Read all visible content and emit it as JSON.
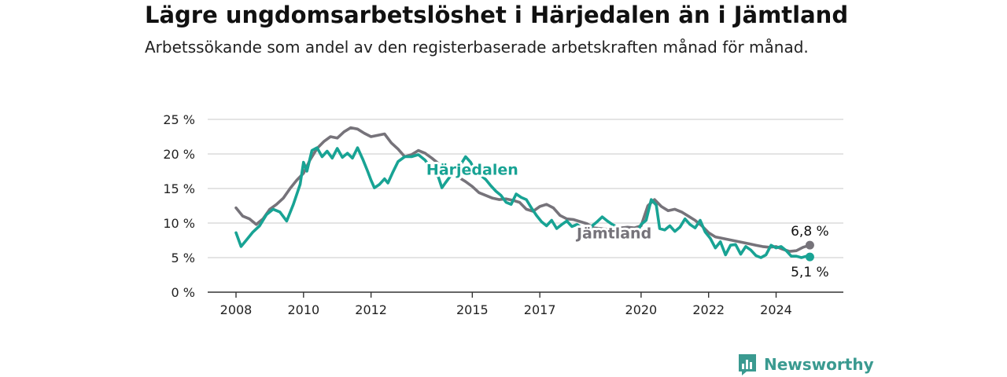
{
  "title": "Lägre ungdomsarbetslöshet i Härjedalen än i Jämtland",
  "subtitle": "Arbetssökande som andel av den registerbaserade arbetskraften månad för månad.",
  "brand": {
    "name": "Newsworthy",
    "logo_icon": "bar-chart-icon",
    "color": "#3a9a90"
  },
  "chart_data": {
    "type": "line",
    "title": "Lägre ungdomsarbetslöshet i Härjedalen än i Jämtland",
    "subtitle": "Arbetssökande som andel av den registerbaserade arbetskraften månad för månad.",
    "xlabel": "",
    "ylabel": "",
    "xlim": [
      2008,
      2025.2
    ],
    "ylim": [
      0,
      25
    ],
    "x_ticks": [
      2008,
      2010,
      2012,
      2015,
      2017,
      2020,
      2022,
      2024
    ],
    "x_tick_labels": [
      "2008",
      "2010",
      "2012",
      "2015",
      "2017",
      "2020",
      "2022",
      "2024"
    ],
    "y_ticks": [
      0,
      5,
      10,
      15,
      20,
      25
    ],
    "y_tick_labels": [
      "0 %",
      "5 %",
      "10 %",
      "15 %",
      "20 %",
      "25 %"
    ],
    "grid": "horizontal",
    "series": [
      {
        "name": "Jämtland",
        "color": "#76737a",
        "end_label": "6,8 %",
        "points": [
          [
            2008.0,
            12.2
          ],
          [
            2008.2,
            11.0
          ],
          [
            2008.4,
            10.6
          ],
          [
            2008.6,
            9.8
          ],
          [
            2008.8,
            10.6
          ],
          [
            2009.0,
            12.0
          ],
          [
            2009.2,
            12.7
          ],
          [
            2009.4,
            13.6
          ],
          [
            2009.6,
            15.0
          ],
          [
            2009.8,
            16.2
          ],
          [
            2010.0,
            17.2
          ],
          [
            2010.2,
            19.2
          ],
          [
            2010.4,
            20.8
          ],
          [
            2010.6,
            21.8
          ],
          [
            2010.8,
            22.5
          ],
          [
            2011.0,
            22.3
          ],
          [
            2011.2,
            23.2
          ],
          [
            2011.4,
            23.8
          ],
          [
            2011.6,
            23.6
          ],
          [
            2011.8,
            23.0
          ],
          [
            2012.0,
            22.5
          ],
          [
            2012.2,
            22.7
          ],
          [
            2012.4,
            22.9
          ],
          [
            2012.6,
            21.6
          ],
          [
            2012.8,
            20.7
          ],
          [
            2013.0,
            19.6
          ],
          [
            2013.2,
            19.9
          ],
          [
            2013.4,
            20.5
          ],
          [
            2013.6,
            20.1
          ],
          [
            2013.8,
            19.4
          ],
          [
            2014.0,
            18.6
          ],
          [
            2014.2,
            18.0
          ],
          [
            2014.4,
            17.4
          ],
          [
            2014.6,
            16.6
          ],
          [
            2014.8,
            16.0
          ],
          [
            2015.0,
            15.3
          ],
          [
            2015.2,
            14.4
          ],
          [
            2015.4,
            14.0
          ],
          [
            2015.6,
            13.6
          ],
          [
            2015.8,
            13.4
          ],
          [
            2016.0,
            13.5
          ],
          [
            2016.2,
            13.3
          ],
          [
            2016.4,
            13.0
          ],
          [
            2016.6,
            12.0
          ],
          [
            2016.8,
            11.7
          ],
          [
            2017.0,
            12.4
          ],
          [
            2017.2,
            12.7
          ],
          [
            2017.4,
            12.2
          ],
          [
            2017.6,
            11.1
          ],
          [
            2017.8,
            10.6
          ],
          [
            2018.0,
            10.5
          ],
          [
            2018.2,
            10.2
          ],
          [
            2018.4,
            9.9
          ],
          [
            2018.6,
            9.3
          ],
          [
            2018.8,
            9.2
          ],
          [
            2019.0,
            9.1
          ],
          [
            2019.2,
            9.3
          ],
          [
            2019.4,
            9.3
          ],
          [
            2019.6,
            9.4
          ],
          [
            2019.8,
            9.3
          ],
          [
            2020.0,
            9.6
          ],
          [
            2020.2,
            12.5
          ],
          [
            2020.4,
            13.4
          ],
          [
            2020.6,
            12.4
          ],
          [
            2020.8,
            11.8
          ],
          [
            2021.0,
            12.0
          ],
          [
            2021.2,
            11.6
          ],
          [
            2021.4,
            11.0
          ],
          [
            2021.6,
            10.4
          ],
          [
            2021.8,
            9.6
          ],
          [
            2022.0,
            8.6
          ],
          [
            2022.2,
            8.0
          ],
          [
            2022.4,
            7.8
          ],
          [
            2022.6,
            7.6
          ],
          [
            2022.8,
            7.4
          ],
          [
            2023.0,
            7.2
          ],
          [
            2023.2,
            7.0
          ],
          [
            2023.4,
            6.8
          ],
          [
            2023.6,
            6.6
          ],
          [
            2023.8,
            6.5
          ],
          [
            2024.0,
            6.6
          ],
          [
            2024.2,
            6.2
          ],
          [
            2024.4,
            5.9
          ],
          [
            2024.6,
            6.0
          ],
          [
            2024.8,
            6.5
          ],
          [
            2025.0,
            6.8
          ]
        ]
      },
      {
        "name": "Härjedalen",
        "color": "#18a394",
        "end_label": "5,1 %",
        "points": [
          [
            2008.0,
            8.6
          ],
          [
            2008.15,
            6.6
          ],
          [
            2008.3,
            7.5
          ],
          [
            2008.5,
            8.7
          ],
          [
            2008.7,
            9.6
          ],
          [
            2008.9,
            11.2
          ],
          [
            2009.1,
            12.0
          ],
          [
            2009.3,
            11.6
          ],
          [
            2009.5,
            10.3
          ],
          [
            2009.7,
            12.7
          ],
          [
            2009.9,
            15.6
          ],
          [
            2010.0,
            18.8
          ],
          [
            2010.1,
            17.5
          ],
          [
            2010.25,
            20.5
          ],
          [
            2010.4,
            20.9
          ],
          [
            2010.55,
            19.6
          ],
          [
            2010.7,
            20.4
          ],
          [
            2010.85,
            19.4
          ],
          [
            2011.0,
            20.8
          ],
          [
            2011.15,
            19.5
          ],
          [
            2011.3,
            20.1
          ],
          [
            2011.45,
            19.4
          ],
          [
            2011.6,
            20.9
          ],
          [
            2011.75,
            19.3
          ],
          [
            2011.9,
            17.5
          ],
          [
            2012.0,
            16.2
          ],
          [
            2012.1,
            15.1
          ],
          [
            2012.25,
            15.6
          ],
          [
            2012.4,
            16.4
          ],
          [
            2012.5,
            15.8
          ],
          [
            2012.65,
            17.4
          ],
          [
            2012.8,
            18.9
          ],
          [
            2013.0,
            19.6
          ],
          [
            2013.2,
            19.6
          ],
          [
            2013.4,
            19.9
          ],
          [
            2013.6,
            19.1
          ],
          [
            2013.8,
            17.8
          ],
          [
            2014.0,
            16.6
          ],
          [
            2014.1,
            15.1
          ],
          [
            2014.2,
            15.8
          ],
          [
            2014.35,
            16.8
          ],
          [
            2014.5,
            17.6
          ],
          [
            2014.65,
            18.4
          ],
          [
            2014.8,
            19.6
          ],
          [
            2014.95,
            18.8
          ],
          [
            2015.1,
            17.4
          ],
          [
            2015.25,
            16.9
          ],
          [
            2015.4,
            16.3
          ],
          [
            2015.55,
            15.4
          ],
          [
            2015.7,
            14.6
          ],
          [
            2015.85,
            14.0
          ],
          [
            2016.0,
            13.0
          ],
          [
            2016.15,
            12.7
          ],
          [
            2016.3,
            14.2
          ],
          [
            2016.45,
            13.7
          ],
          [
            2016.6,
            13.4
          ],
          [
            2016.75,
            12.2
          ],
          [
            2016.9,
            11.1
          ],
          [
            2017.05,
            10.2
          ],
          [
            2017.2,
            9.6
          ],
          [
            2017.35,
            10.4
          ],
          [
            2017.5,
            9.2
          ],
          [
            2017.65,
            9.8
          ],
          [
            2017.8,
            10.3
          ],
          [
            2017.95,
            9.5
          ],
          [
            2018.1,
            9.8
          ],
          [
            2018.25,
            9.3
          ],
          [
            2018.4,
            8.6
          ],
          [
            2018.55,
            9.6
          ],
          [
            2018.7,
            10.2
          ],
          [
            2018.85,
            10.9
          ],
          [
            2019.0,
            10.3
          ],
          [
            2019.15,
            9.8
          ],
          [
            2019.3,
            9.4
          ],
          [
            2019.45,
            8.2
          ],
          [
            2019.6,
            8.0
          ],
          [
            2019.8,
            7.9
          ],
          [
            2020.0,
            9.8
          ],
          [
            2020.15,
            10.4
          ],
          [
            2020.3,
            13.4
          ],
          [
            2020.45,
            12.6
          ],
          [
            2020.55,
            9.2
          ],
          [
            2020.7,
            9.0
          ],
          [
            2020.85,
            9.6
          ],
          [
            2021.0,
            8.8
          ],
          [
            2021.15,
            9.4
          ],
          [
            2021.3,
            10.6
          ],
          [
            2021.45,
            9.8
          ],
          [
            2021.6,
            9.3
          ],
          [
            2021.75,
            10.4
          ],
          [
            2021.9,
            8.7
          ],
          [
            2022.05,
            7.8
          ],
          [
            2022.2,
            6.4
          ],
          [
            2022.35,
            7.3
          ],
          [
            2022.5,
            5.4
          ],
          [
            2022.65,
            6.8
          ],
          [
            2022.8,
            6.9
          ],
          [
            2022.95,
            5.5
          ],
          [
            2023.1,
            6.6
          ],
          [
            2023.25,
            6.1
          ],
          [
            2023.4,
            5.3
          ],
          [
            2023.55,
            5.0
          ],
          [
            2023.7,
            5.4
          ],
          [
            2023.85,
            6.8
          ],
          [
            2024.0,
            6.4
          ],
          [
            2024.15,
            6.6
          ],
          [
            2024.3,
            6.0
          ],
          [
            2024.45,
            5.2
          ],
          [
            2024.6,
            5.2
          ],
          [
            2024.75,
            5.0
          ],
          [
            2024.9,
            5.2
          ],
          [
            2025.0,
            5.1
          ]
        ]
      }
    ]
  }
}
